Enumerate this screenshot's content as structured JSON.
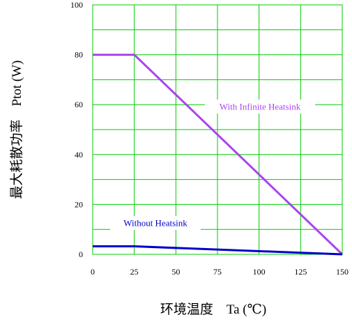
{
  "chart_data": {
    "type": "line",
    "title": "",
    "xlabel": "环境温度    Ta (℃)",
    "ylabel": "最大耗散功率    Ptot (W)",
    "xlim": [
      0,
      150
    ],
    "ylim": [
      0,
      100
    ],
    "x_ticks": [
      "0",
      "25",
      "50",
      "75",
      "100",
      "125",
      "150"
    ],
    "y_ticks": [
      "0",
      "20",
      "40",
      "60",
      "80",
      "100"
    ],
    "grid": true,
    "colors": {
      "grid": "#00cc00",
      "with_infinite_heatsink": "#aa44ee",
      "without_heatsink": "#0000cc"
    },
    "series": [
      {
        "name": "With Infinite Heatsink",
        "x": [
          0,
          25,
          150
        ],
        "y": [
          80,
          80,
          0
        ],
        "color": "#aa44ee"
      },
      {
        "name": "Without Heatsink",
        "x": [
          0,
          25,
          150
        ],
        "y": [
          3.2,
          3.2,
          0
        ],
        "color": "#0000cc"
      }
    ]
  }
}
